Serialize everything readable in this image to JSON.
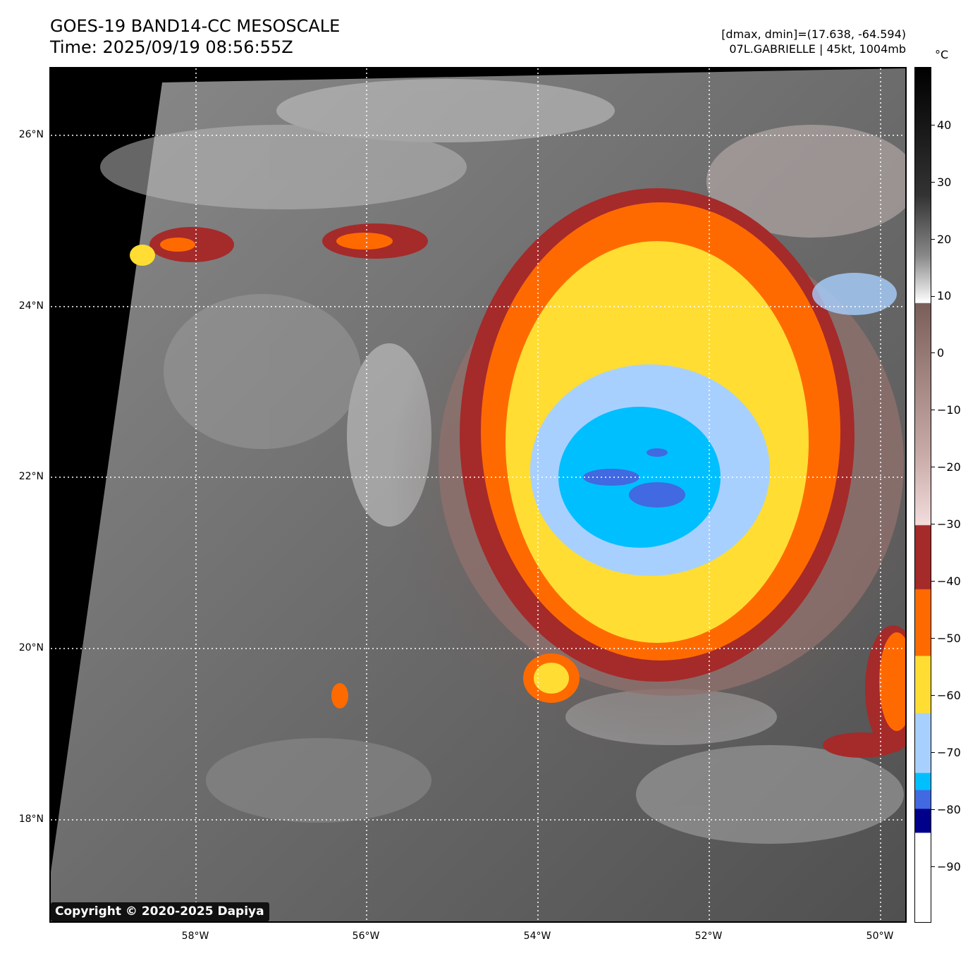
{
  "header": {
    "title_line1": "GOES-19 BAND14-CC MESOSCALE",
    "title_line2": "Time: 2025/09/19 08:56:55Z"
  },
  "info": {
    "range_line": "[dmax, dmin]=(17.638, -64.594)",
    "storm_line": "07L.GABRIELLE | 45kt, 1004mb"
  },
  "map": {
    "lat_labels": [
      "26°N",
      "24°N",
      "22°N",
      "20°N",
      "18°N"
    ],
    "lon_labels": [
      "58°W",
      "56°W",
      "54°W",
      "52°W",
      "50°W"
    ]
  },
  "copyright": "Copyright © 2020-2025 Dapiya",
  "colorbar": {
    "unit": "°C",
    "ticks": [
      "40",
      "30",
      "20",
      "10",
      "0",
      "−10",
      "−20",
      "−30",
      "−40",
      "−50",
      "−60",
      "−70",
      "−80",
      "−90"
    ],
    "colors": {
      "warm_black": "#000000",
      "gray_white": "#ffffff",
      "brown": "#8a6a66",
      "pink": "#f2dcdc",
      "dark_red": "#a52a2a",
      "orange": "#ff6a00",
      "yellow": "#ffdd33",
      "light_blue": "#a8d0ff",
      "cyan_blue": "#00bfff",
      "royal_blue": "#4169e1",
      "navy": "#00008b",
      "cold_white": "#ffffff"
    }
  }
}
